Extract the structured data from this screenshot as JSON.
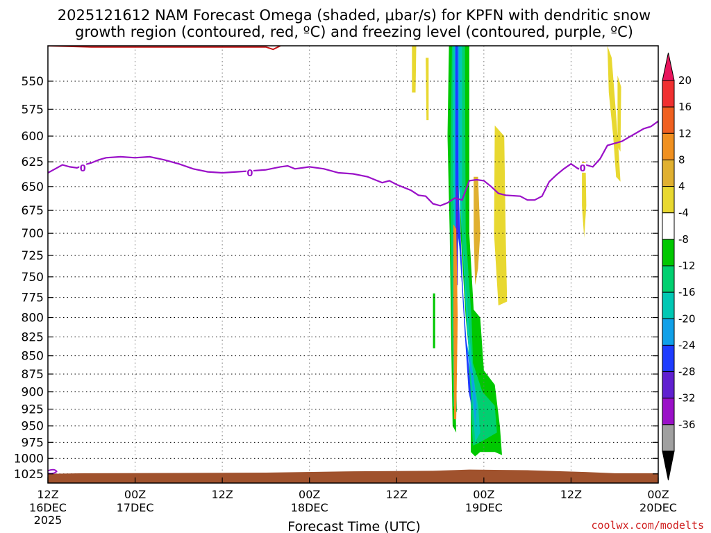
{
  "chart_data": {
    "type": "heatmap",
    "title_line1": "2025121612 NAM Forecast Omega (shaded, μbar/s) for KPFN with dendritic snow",
    "title_line2": "growth region (contoured, red, ºC) and freezing level (contoured, purple, ºC)",
    "xlabel": "Forecast Time (UTC)",
    "ylabel": "",
    "credit": "coolwx.com/modelts",
    "credit_color": "#d02020",
    "x_range_hours": [
      0,
      84
    ],
    "x_ticks": [
      {
        "hour": 0,
        "label": "12Z",
        "sub": "16DEC",
        "sub2": "2025"
      },
      {
        "hour": 12,
        "label": "00Z",
        "sub": "17DEC",
        "sub2": ""
      },
      {
        "hour": 24,
        "label": "12Z",
        "sub": "",
        "sub2": ""
      },
      {
        "hour": 36,
        "label": "00Z",
        "sub": "18DEC",
        "sub2": ""
      },
      {
        "hour": 48,
        "label": "12Z",
        "sub": "",
        "sub2": ""
      },
      {
        "hour": 60,
        "label": "00Z",
        "sub": "19DEC",
        "sub2": ""
      },
      {
        "hour": 72,
        "label": "12Z",
        "sub": "",
        "sub2": ""
      },
      {
        "hour": 84,
        "label": "00Z",
        "sub": "20DEC",
        "sub2": ""
      }
    ],
    "y_range_mb": [
      1040,
      520
    ],
    "y_ticks": [
      550,
      575,
      600,
      625,
      650,
      675,
      700,
      725,
      750,
      775,
      800,
      825,
      850,
      875,
      900,
      925,
      950,
      975,
      1000,
      1025
    ],
    "grid": true,
    "colorbar": {
      "labels": [
        "20",
        "16",
        "12",
        "8",
        "4",
        "-4",
        "-8",
        "-12",
        "-16",
        "-20",
        "-24",
        "-28",
        "-32",
        "-36"
      ],
      "colors": [
        "#e8145c",
        "#f03030",
        "#f06020",
        "#f09020",
        "#e0b030",
        "#e8d830",
        "#ffffff",
        "#00c800",
        "#00d070",
        "#00c8b4",
        "#10a0e8",
        "#1e3cff",
        "#6020d0",
        "#9a10c8",
        "#a0a0a0",
        "#000000"
      ]
    },
    "omega_regions": [
      {
        "color": "#e8d830",
        "points": [
          [
            50.1,
            520
          ],
          [
            50.7,
            520
          ],
          [
            50.6,
            560
          ],
          [
            50.1,
            560
          ]
        ]
      },
      {
        "color": "#e8d830",
        "points": [
          [
            52.0,
            530
          ],
          [
            52.4,
            530
          ],
          [
            52.4,
            585
          ],
          [
            52.1,
            585
          ]
        ]
      },
      {
        "color": "#e8d830",
        "points": [
          [
            61.5,
            590
          ],
          [
            62.8,
            600
          ],
          [
            63.0,
            700
          ],
          [
            63.2,
            780
          ],
          [
            62.0,
            785
          ],
          [
            61.4,
            700
          ]
        ]
      },
      {
        "color": "#e8d830",
        "points": [
          [
            77.0,
            520
          ],
          [
            77.6,
            530
          ],
          [
            78.2,
            580
          ],
          [
            78.6,
            620
          ],
          [
            78.8,
            645
          ],
          [
            78.2,
            640
          ],
          [
            77.8,
            600
          ],
          [
            77.2,
            560
          ]
        ]
      },
      {
        "color": "#e8d830",
        "points": [
          [
            78.4,
            545
          ],
          [
            78.9,
            555
          ],
          [
            78.8,
            615
          ],
          [
            78.4,
            610
          ]
        ]
      },
      {
        "color": "#e8d830",
        "points": [
          [
            73.5,
            625
          ],
          [
            74.0,
            625
          ],
          [
            74.1,
            670
          ],
          [
            73.8,
            705
          ],
          [
            73.5,
            670
          ]
        ]
      },
      {
        "color": "#00c800",
        "points": [
          [
            53.0,
            770
          ],
          [
            53.3,
            770
          ],
          [
            53.3,
            840
          ],
          [
            53.0,
            840
          ]
        ]
      },
      {
        "color": "#00c800",
        "points": [
          [
            55.2,
            520
          ],
          [
            58.0,
            520
          ],
          [
            58.0,
            700
          ],
          [
            58.6,
            790
          ],
          [
            59.5,
            800
          ],
          [
            60.0,
            870
          ],
          [
            61.5,
            890
          ],
          [
            62.2,
            950
          ],
          [
            62.5,
            995
          ],
          [
            61.5,
            990
          ],
          [
            59.5,
            990
          ],
          [
            58.8,
            997
          ],
          [
            58.2,
            990
          ],
          [
            58.2,
            870
          ],
          [
            57.5,
            800
          ],
          [
            56.8,
            700
          ],
          [
            56.5,
            600
          ],
          [
            56.0,
            620
          ],
          [
            55.9,
            760
          ],
          [
            56.0,
            880
          ],
          [
            56.2,
            960
          ],
          [
            55.7,
            950
          ],
          [
            55.5,
            830
          ],
          [
            55.3,
            700
          ],
          [
            55.0,
            600
          ]
        ]
      },
      {
        "color": "#00d070",
        "points": [
          [
            55.6,
            520
          ],
          [
            57.4,
            520
          ],
          [
            57.5,
            700
          ],
          [
            58.3,
            800
          ],
          [
            58.5,
            860
          ],
          [
            59.8,
            900
          ],
          [
            61.5,
            920
          ],
          [
            61.8,
            960
          ],
          [
            59.5,
            975
          ],
          [
            58.5,
            980
          ],
          [
            58.2,
            920
          ],
          [
            57.8,
            820
          ],
          [
            57.0,
            700
          ],
          [
            56.6,
            560
          ],
          [
            56.0,
            600
          ],
          [
            56.0,
            800
          ],
          [
            56.3,
            930
          ],
          [
            55.8,
            920
          ],
          [
            55.6,
            800
          ],
          [
            55.4,
            650
          ]
        ]
      },
      {
        "color": "#00c8b4",
        "points": [
          [
            55.8,
            520
          ],
          [
            57.0,
            520
          ],
          [
            57.0,
            700
          ],
          [
            58.0,
            820
          ],
          [
            58.6,
            880
          ],
          [
            59.2,
            920
          ],
          [
            59.5,
            960
          ],
          [
            58.8,
            975
          ],
          [
            58.4,
            910
          ],
          [
            57.6,
            800
          ],
          [
            56.6,
            650
          ],
          [
            56.2,
            700
          ],
          [
            56.0,
            880
          ],
          [
            55.9,
            760
          ],
          [
            55.7,
            600
          ]
        ]
      },
      {
        "color": "#10a0e8",
        "points": [
          [
            56.0,
            520
          ],
          [
            56.6,
            520
          ],
          [
            56.6,
            700
          ],
          [
            57.6,
            830
          ],
          [
            58.6,
            880
          ],
          [
            59.0,
            920
          ],
          [
            58.8,
            950
          ],
          [
            58.4,
            890
          ],
          [
            57.5,
            830
          ],
          [
            56.5,
            700
          ],
          [
            56.2,
            820
          ],
          [
            56.0,
            700
          ]
        ]
      },
      {
        "color": "#1e3cff",
        "points": [
          [
            56.1,
            520
          ],
          [
            56.4,
            520
          ],
          [
            56.5,
            650
          ],
          [
            57.2,
            780
          ],
          [
            57.5,
            820
          ],
          [
            58.0,
            870
          ],
          [
            58.3,
            920
          ],
          [
            57.9,
            900
          ],
          [
            57.3,
            810
          ],
          [
            56.7,
            720
          ],
          [
            56.4,
            700
          ],
          [
            56.2,
            750
          ],
          [
            56.1,
            650
          ]
        ]
      },
      {
        "color": "#6020d0",
        "points": [
          [
            56.2,
            650
          ],
          [
            56.4,
            650
          ],
          [
            56.4,
            760
          ],
          [
            56.2,
            760
          ]
        ]
      },
      {
        "color": "#f09020",
        "points": [
          [
            55.8,
            690
          ],
          [
            56.2,
            695
          ],
          [
            56.4,
            800
          ],
          [
            56.2,
            940
          ],
          [
            55.9,
            940
          ],
          [
            55.8,
            800
          ]
        ]
      },
      {
        "color": "#e0b030",
        "points": [
          [
            58.6,
            640
          ],
          [
            59.2,
            640
          ],
          [
            59.5,
            700
          ],
          [
            59.2,
            740
          ],
          [
            58.8,
            760
          ],
          [
            58.6,
            700
          ]
        ]
      }
    ],
    "dgz_line": [
      [
        0,
        520
      ],
      [
        6,
        521
      ],
      [
        15,
        521
      ],
      [
        25,
        521
      ],
      [
        30,
        521
      ],
      [
        31,
        523
      ],
      [
        32,
        520
      ]
    ],
    "freezing_level": [
      {
        "hour": 0,
        "mb": 636
      },
      {
        "hour": 1,
        "mb": 632
      },
      {
        "hour": 2,
        "mb": 628
      },
      {
        "hour": 3,
        "mb": 630
      },
      {
        "hour": 4,
        "mb": 631
      },
      {
        "hour": 5,
        "mb": 628
      },
      {
        "hour": 6,
        "mb": 626
      },
      {
        "hour": 7,
        "mb": 623
      },
      {
        "hour": 8,
        "mb": 621
      },
      {
        "hour": 10,
        "mb": 620
      },
      {
        "hour": 12,
        "mb": 621
      },
      {
        "hour": 14,
        "mb": 620
      },
      {
        "hour": 16,
        "mb": 623
      },
      {
        "hour": 18,
        "mb": 627
      },
      {
        "hour": 20,
        "mb": 632
      },
      {
        "hour": 22,
        "mb": 635
      },
      {
        "hour": 24,
        "mb": 636
      },
      {
        "hour": 26,
        "mb": 635
      },
      {
        "hour": 28,
        "mb": 634
      },
      {
        "hour": 30,
        "mb": 633
      },
      {
        "hour": 32,
        "mb": 630
      },
      {
        "hour": 33,
        "mb": 629
      },
      {
        "hour": 34,
        "mb": 632
      },
      {
        "hour": 35,
        "mb": 631
      },
      {
        "hour": 36,
        "mb": 630
      },
      {
        "hour": 38,
        "mb": 632
      },
      {
        "hour": 40,
        "mb": 636
      },
      {
        "hour": 42,
        "mb": 637
      },
      {
        "hour": 44,
        "mb": 640
      },
      {
        "hour": 45,
        "mb": 643
      },
      {
        "hour": 46,
        "mb": 646
      },
      {
        "hour": 47,
        "mb": 644
      },
      {
        "hour": 48,
        "mb": 648
      },
      {
        "hour": 50,
        "mb": 654
      },
      {
        "hour": 51,
        "mb": 659
      },
      {
        "hour": 52,
        "mb": 660
      },
      {
        "hour": 53,
        "mb": 668
      },
      {
        "hour": 54,
        "mb": 670
      },
      {
        "hour": 55,
        "mb": 667
      },
      {
        "hour": 56,
        "mb": 662
      },
      {
        "hour": 57,
        "mb": 664
      },
      {
        "hour": 58,
        "mb": 644
      },
      {
        "hour": 59,
        "mb": 643
      },
      {
        "hour": 60,
        "mb": 644
      },
      {
        "hour": 61,
        "mb": 650
      },
      {
        "hour": 62,
        "mb": 657
      },
      {
        "hour": 63,
        "mb": 659
      },
      {
        "hour": 65,
        "mb": 660
      },
      {
        "hour": 66,
        "mb": 664
      },
      {
        "hour": 67,
        "mb": 664
      },
      {
        "hour": 68,
        "mb": 660
      },
      {
        "hour": 69,
        "mb": 645
      },
      {
        "hour": 70,
        "mb": 638
      },
      {
        "hour": 71,
        "mb": 632
      },
      {
        "hour": 72,
        "mb": 627
      },
      {
        "hour": 73,
        "mb": 632
      },
      {
        "hour": 74,
        "mb": 628
      },
      {
        "hour": 75,
        "mb": 630
      },
      {
        "hour": 76,
        "mb": 622
      },
      {
        "hour": 77,
        "mb": 609
      },
      {
        "hour": 78,
        "mb": 607
      },
      {
        "hour": 79,
        "mb": 605
      },
      {
        "hour": 80,
        "mb": 601
      },
      {
        "hour": 81,
        "mb": 597
      },
      {
        "hour": 82,
        "mb": 593
      },
      {
        "hour": 83,
        "mb": 591
      },
      {
        "hour": 84,
        "mb": 586
      }
    ],
    "freezing_level_labels": [
      {
        "hour": 4.8,
        "mb": 631,
        "text": "0"
      },
      {
        "hour": 27.8,
        "mb": 636,
        "text": "0"
      },
      {
        "hour": 73.6,
        "mb": 631,
        "text": "0"
      }
    ],
    "freezing_level_color": "#9a10c8",
    "ground_top_mb": [
      {
        "hour": 0,
        "mb": 1025
      },
      {
        "hour": 5,
        "mb": 1024
      },
      {
        "hour": 30,
        "mb": 1023
      },
      {
        "hour": 41,
        "mb": 1021
      },
      {
        "hour": 53,
        "mb": 1020
      },
      {
        "hour": 58,
        "mb": 1018
      },
      {
        "hour": 66,
        "mb": 1019
      },
      {
        "hour": 74,
        "mb": 1022
      },
      {
        "hour": 78,
        "mb": 1024
      },
      {
        "hour": 84,
        "mb": 1024
      }
    ],
    "ground_color": "#a0522d"
  }
}
